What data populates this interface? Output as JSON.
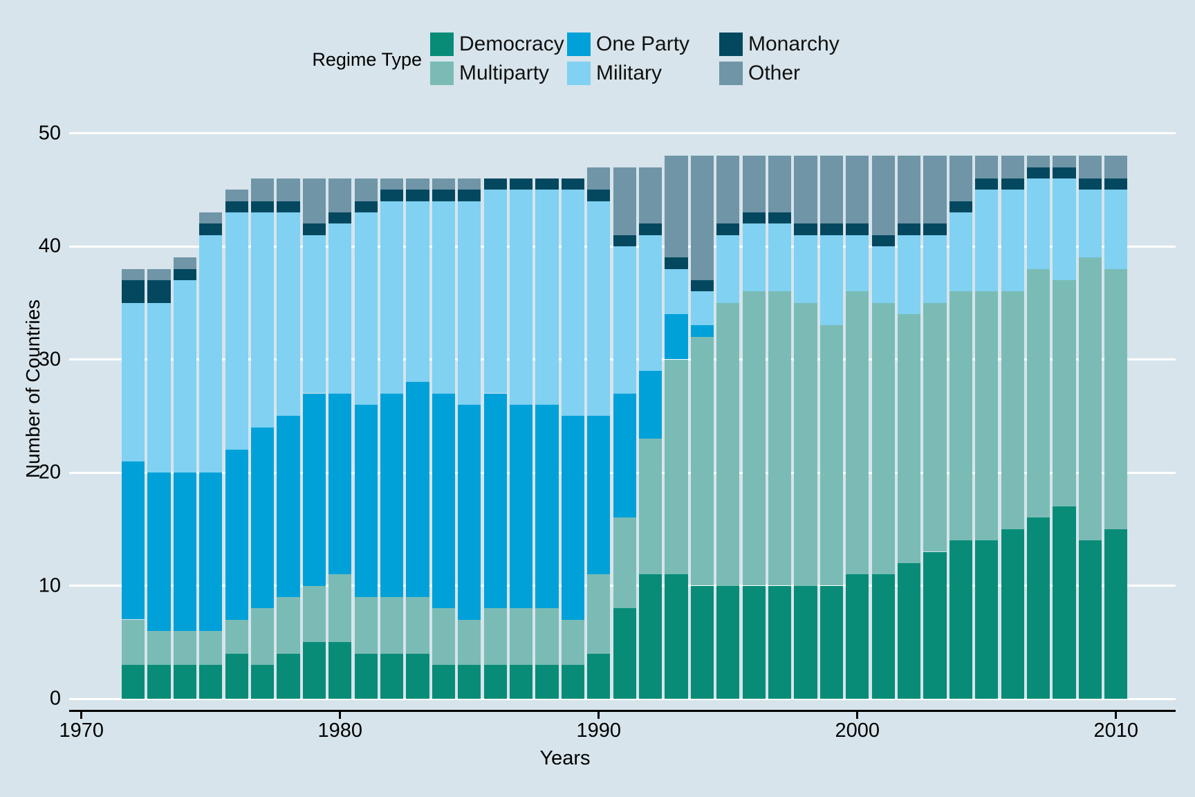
{
  "legend": {
    "title": "Regime Type",
    "entries": [
      {
        "key": "democracy",
        "label": "Democracy",
        "row": 0,
        "col": 0
      },
      {
        "key": "multiparty",
        "label": "Multiparty",
        "row": 1,
        "col": 0
      },
      {
        "key": "oneparty",
        "label": "One Party",
        "row": 0,
        "col": 1
      },
      {
        "key": "military",
        "label": "Military",
        "row": 1,
        "col": 1
      },
      {
        "key": "monarchy",
        "label": "Monarchy",
        "row": 0,
        "col": 2
      },
      {
        "key": "other",
        "label": "Other",
        "row": 1,
        "col": 2
      }
    ]
  },
  "axes": {
    "y_label": "Number of Countries",
    "x_label": "Years",
    "y_ticks": [
      0,
      10,
      20,
      30,
      40,
      50
    ],
    "x_ticks": [
      1970,
      1980,
      1990,
      2000,
      2010
    ],
    "y_max": 50
  },
  "colors": {
    "background": "#d7e4eb",
    "gridline": "#ffffff",
    "axis_line": "#000000",
    "text": "#000000",
    "democracy": "#088c78",
    "multiparty": "#7abcb5",
    "oneparty": "#00a1d9",
    "military": "#80d1f2",
    "monarchy": "#04485f",
    "other": "#6f95a7"
  },
  "chart_data": {
    "type": "bar",
    "stacked": true,
    "title": "",
    "xlabel": "Years",
    "ylabel": "Number of Countries",
    "ylim": [
      0,
      50
    ],
    "grid": true,
    "legend_position": "top",
    "x": [
      1972,
      1973,
      1974,
      1975,
      1976,
      1977,
      1978,
      1979,
      1980,
      1981,
      1982,
      1983,
      1984,
      1985,
      1986,
      1987,
      1988,
      1989,
      1990,
      1991,
      1992,
      1993,
      1994,
      1995,
      1996,
      1997,
      1998,
      1999,
      2000,
      2001,
      2002,
      2003,
      2004,
      2005,
      2006,
      2007,
      2008,
      2009,
      2010
    ],
    "series": [
      {
        "name": "Democracy",
        "key": "democracy",
        "values": [
          3,
          3,
          3,
          3,
          4,
          3,
          4,
          5,
          5,
          4,
          4,
          4,
          3,
          3,
          3,
          3,
          3,
          3,
          4,
          8,
          11,
          11,
          10,
          10,
          10,
          10,
          10,
          10,
          11,
          11,
          12,
          13,
          14,
          14,
          15,
          16,
          17,
          14,
          15
        ]
      },
      {
        "name": "Multiparty",
        "key": "multiparty",
        "values": [
          4,
          3,
          3,
          3,
          3,
          5,
          5,
          5,
          6,
          5,
          5,
          5,
          5,
          4,
          5,
          5,
          5,
          4,
          7,
          8,
          12,
          19,
          22,
          25,
          26,
          26,
          25,
          23,
          25,
          24,
          22,
          22,
          22,
          22,
          21,
          22,
          20,
          25,
          23
        ]
      },
      {
        "name": "One Party",
        "key": "oneparty",
        "values": [
          14,
          14,
          14,
          14,
          15,
          16,
          16,
          17,
          16,
          17,
          18,
          19,
          19,
          19,
          19,
          18,
          18,
          18,
          14,
          11,
          6,
          4,
          1,
          0,
          0,
          0,
          0,
          0,
          0,
          0,
          0,
          0,
          0,
          0,
          0,
          0,
          0,
          0,
          0
        ]
      },
      {
        "name": "Military",
        "key": "military",
        "values": [
          14,
          15,
          17,
          21,
          21,
          19,
          18,
          14,
          15,
          17,
          17,
          16,
          17,
          18,
          18,
          19,
          19,
          20,
          19,
          13,
          12,
          4,
          3,
          6,
          6,
          6,
          6,
          8,
          5,
          5,
          7,
          6,
          7,
          9,
          9,
          8,
          9,
          6,
          7
        ]
      },
      {
        "name": "Monarchy",
        "key": "monarchy",
        "values": [
          2,
          2,
          1,
          1,
          1,
          1,
          1,
          1,
          1,
          1,
          1,
          1,
          1,
          1,
          1,
          1,
          1,
          1,
          1,
          1,
          1,
          1,
          1,
          1,
          1,
          1,
          1,
          1,
          1,
          1,
          1,
          1,
          1,
          1,
          1,
          1,
          1,
          1,
          1
        ]
      },
      {
        "name": "Other",
        "key": "other",
        "values": [
          1,
          1,
          1,
          1,
          1,
          2,
          2,
          4,
          3,
          2,
          1,
          1,
          1,
          1,
          0,
          0,
          0,
          0,
          2,
          6,
          5,
          9,
          11,
          6,
          5,
          5,
          6,
          6,
          6,
          7,
          6,
          6,
          4,
          2,
          2,
          1,
          1,
          2,
          2
        ]
      }
    ],
    "totals_note": "Stack order bottom-to-top: Democracy, Multiparty, One Party, Military, Monarchy, Other"
  }
}
